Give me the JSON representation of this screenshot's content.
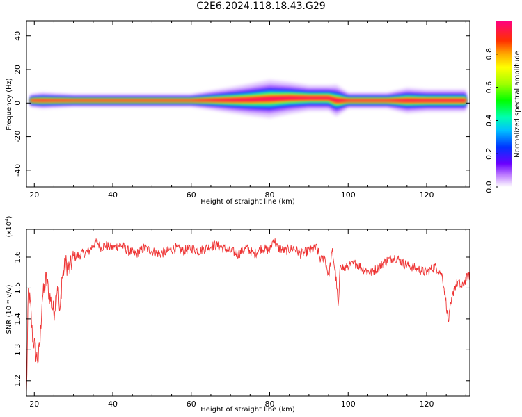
{
  "title": "C2E6.2024.118.18.43.G29",
  "chart_data": [
    {
      "type": "heatmap",
      "xlabel": "Height of straight line (km)",
      "ylabel": "Frequency (Hz)",
      "xlim": [
        18,
        131
      ],
      "ylim": [
        -50,
        49
      ],
      "xticks": [
        20,
        40,
        60,
        80,
        100,
        120
      ],
      "yticks": [
        -40,
        -20,
        0,
        20,
        40
      ],
      "colorbar": {
        "label": "Normalized spectral amplitude",
        "range": [
          0,
          1
        ],
        "ticks": [
          "0.0",
          "0.2",
          "0.4",
          "0.6",
          "0.8"
        ]
      },
      "ridge": {
        "x": [
          19,
          22,
          30,
          40,
          50,
          60,
          65,
          70,
          75,
          80,
          85,
          90,
          95,
          97,
          100,
          110,
          115,
          120,
          125,
          130
        ],
        "center_hz": [
          1.5,
          1.5,
          1.5,
          1.5,
          1.5,
          1.5,
          1.7,
          1.8,
          2.0,
          2.5,
          3.0,
          3.0,
          3.0,
          1.5,
          1.5,
          1.5,
          1.5,
          1.5,
          1.5,
          1.5
        ],
        "halfwidth_hz": [
          2,
          2.5,
          2,
          2,
          2,
          2,
          3,
          4,
          5,
          6,
          5,
          4,
          4,
          5,
          2.5,
          2.5,
          4,
          3.5,
          3.5,
          3.5
        ]
      }
    },
    {
      "type": "line",
      "xlabel": "Height of straight line (km)",
      "ylabel": "SNR (10 * v/v)",
      "yscale_label": "(x10",
      "yscale_exp": "4",
      "yscale_close": ")",
      "xlim": [
        18,
        131
      ],
      "ylim": [
        1.15,
        1.69
      ],
      "xticks": [
        20,
        40,
        60,
        80,
        100,
        120
      ],
      "yticks": [
        "1.2",
        "1.3",
        "1.4",
        "1.5",
        "1.6"
      ],
      "color": "#ee3333",
      "series": [
        {
          "x": [
            18,
            18.5,
            19,
            19.5,
            20,
            20.5,
            21,
            21.5,
            22,
            22.5,
            23,
            24,
            25,
            26,
            26.5,
            27,
            28,
            29,
            30,
            32,
            34,
            35,
            36,
            37,
            38,
            40,
            42,
            44,
            46,
            48,
            50,
            52,
            54,
            56,
            58,
            60,
            62,
            64,
            66,
            68,
            70,
            72,
            74,
            76,
            78,
            80,
            81,
            82,
            84,
            86,
            88,
            90,
            92,
            93,
            94,
            95,
            96,
            97,
            97.5,
            98,
            99,
            100,
            102,
            104,
            106,
            108,
            110,
            112,
            114,
            116,
            118,
            120,
            122,
            123,
            124,
            125,
            125.5,
            126,
            127,
            128,
            129,
            130,
            131
          ],
          "y": [
            1.15,
            1.5,
            1.44,
            1.35,
            1.32,
            1.28,
            1.27,
            1.33,
            1.47,
            1.49,
            1.53,
            1.47,
            1.42,
            1.52,
            1.4,
            1.53,
            1.58,
            1.56,
            1.6,
            1.61,
            1.62,
            1.64,
            1.65,
            1.63,
            1.64,
            1.63,
            1.64,
            1.62,
            1.61,
            1.63,
            1.62,
            1.61,
            1.62,
            1.63,
            1.62,
            1.63,
            1.62,
            1.63,
            1.64,
            1.63,
            1.62,
            1.61,
            1.63,
            1.61,
            1.63,
            1.62,
            1.66,
            1.63,
            1.62,
            1.63,
            1.61,
            1.62,
            1.63,
            1.59,
            1.6,
            1.54,
            1.62,
            1.52,
            1.43,
            1.58,
            1.56,
            1.57,
            1.58,
            1.56,
            1.55,
            1.57,
            1.59,
            1.6,
            1.58,
            1.57,
            1.56,
            1.55,
            1.57,
            1.56,
            1.54,
            1.45,
            1.39,
            1.43,
            1.5,
            1.52,
            1.5,
            1.53,
            1.54
          ]
        }
      ]
    }
  ]
}
